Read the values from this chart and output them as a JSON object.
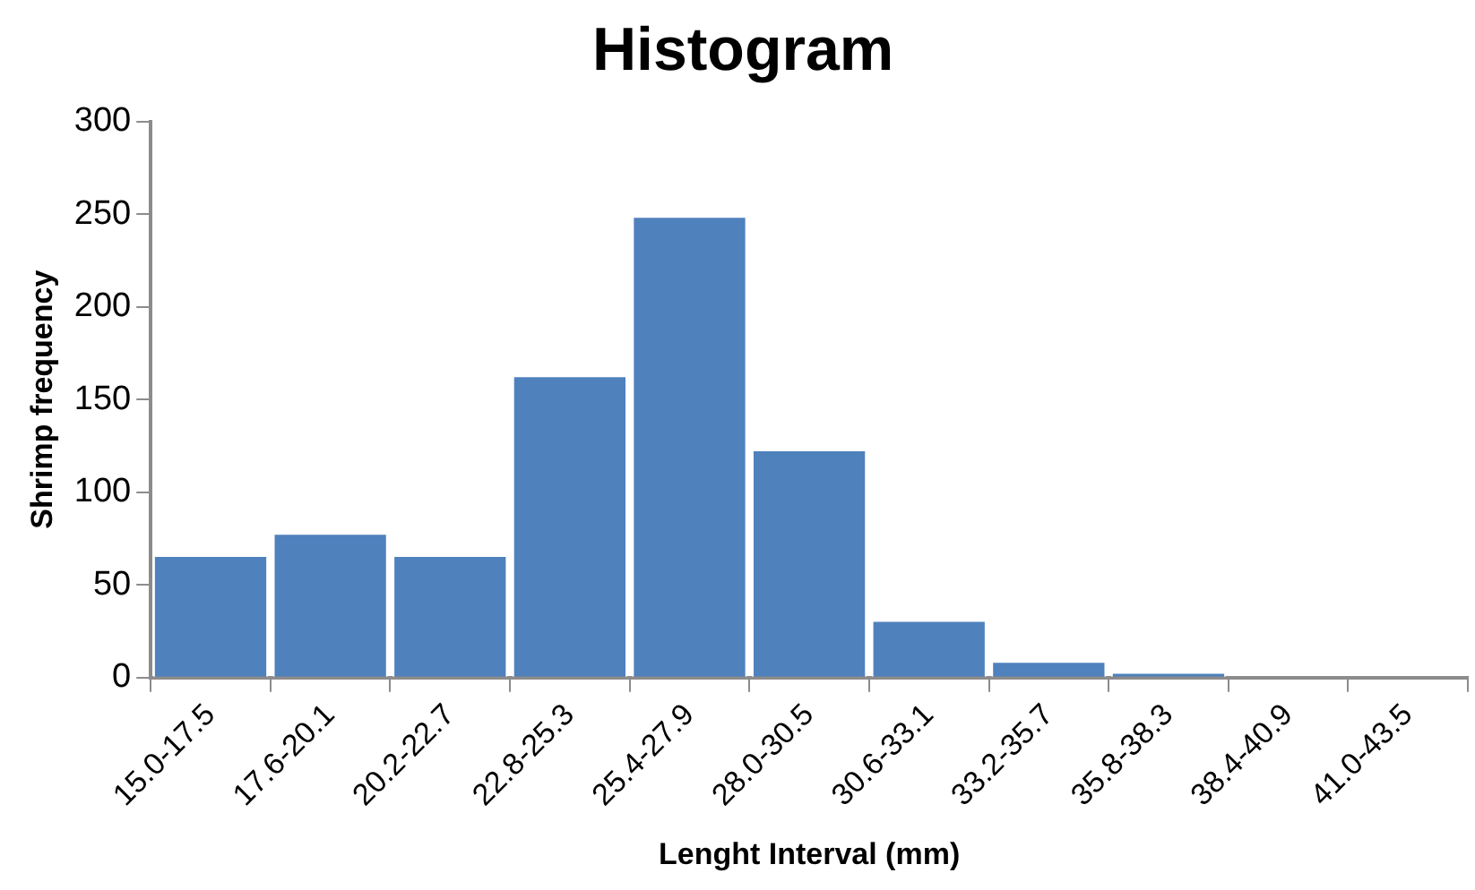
{
  "chart_data": {
    "type": "bar",
    "title": "Histogram",
    "xlabel": "Lenght Interval (mm)",
    "ylabel": "Shrimp frequency",
    "categories": [
      "15.0-17.5",
      "17.6-20.1",
      "20.2-22.7",
      "22.8-25.3",
      "25.4-27.9",
      "28.0-30.5",
      "30.6-33.1",
      "33.2-35.7",
      "35.8-38.3",
      "38.4-40.9",
      "41.0-43.5"
    ],
    "values": [
      66,
      78,
      66,
      163,
      249,
      123,
      31,
      9,
      3,
      0,
      0
    ],
    "color": "#4f81bd",
    "ylim": [
      0,
      300
    ],
    "yticks": [
      0,
      50,
      100,
      150,
      200,
      250,
      300
    ],
    "grid": false,
    "legend": false
  }
}
